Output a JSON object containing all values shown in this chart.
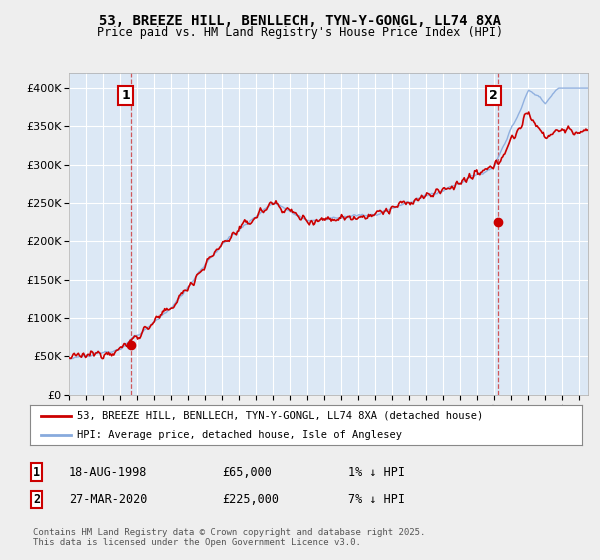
{
  "title": "53, BREEZE HILL, BENLLECH, TYN-Y-GONGL, LL74 8XA",
  "subtitle": "Price paid vs. HM Land Registry's House Price Index (HPI)",
  "legend_line1": "53, BREEZE HILL, BENLLECH, TYN-Y-GONGL, LL74 8XA (detached house)",
  "legend_line2": "HPI: Average price, detached house, Isle of Anglesey",
  "annotation1_label": "1",
  "annotation1_date": "18-AUG-1998",
  "annotation1_price": "£65,000",
  "annotation1_hpi": "1% ↓ HPI",
  "annotation2_label": "2",
  "annotation2_date": "27-MAR-2020",
  "annotation2_price": "£225,000",
  "annotation2_hpi": "7% ↓ HPI",
  "footer": "Contains HM Land Registry data © Crown copyright and database right 2025.\nThis data is licensed under the Open Government Licence v3.0.",
  "red_color": "#cc0000",
  "blue_color": "#88aadd",
  "background_color": "#eeeeee",
  "plot_bg_color": "#dce8f5",
  "grid_color": "#ffffff",
  "ylim": [
    0,
    420000
  ],
  "yticks": [
    0,
    50000,
    100000,
    150000,
    200000,
    250000,
    300000,
    350000,
    400000
  ],
  "ytick_labels": [
    "£0",
    "£50K",
    "£100K",
    "£150K",
    "£200K",
    "£250K",
    "£300K",
    "£350K",
    "£400K"
  ],
  "purchase1_x": 1998.63,
  "purchase1_y": 65000,
  "purchase2_x": 2020.23,
  "purchase2_y": 225000,
  "xmin": 1995.0,
  "xmax": 2025.5
}
